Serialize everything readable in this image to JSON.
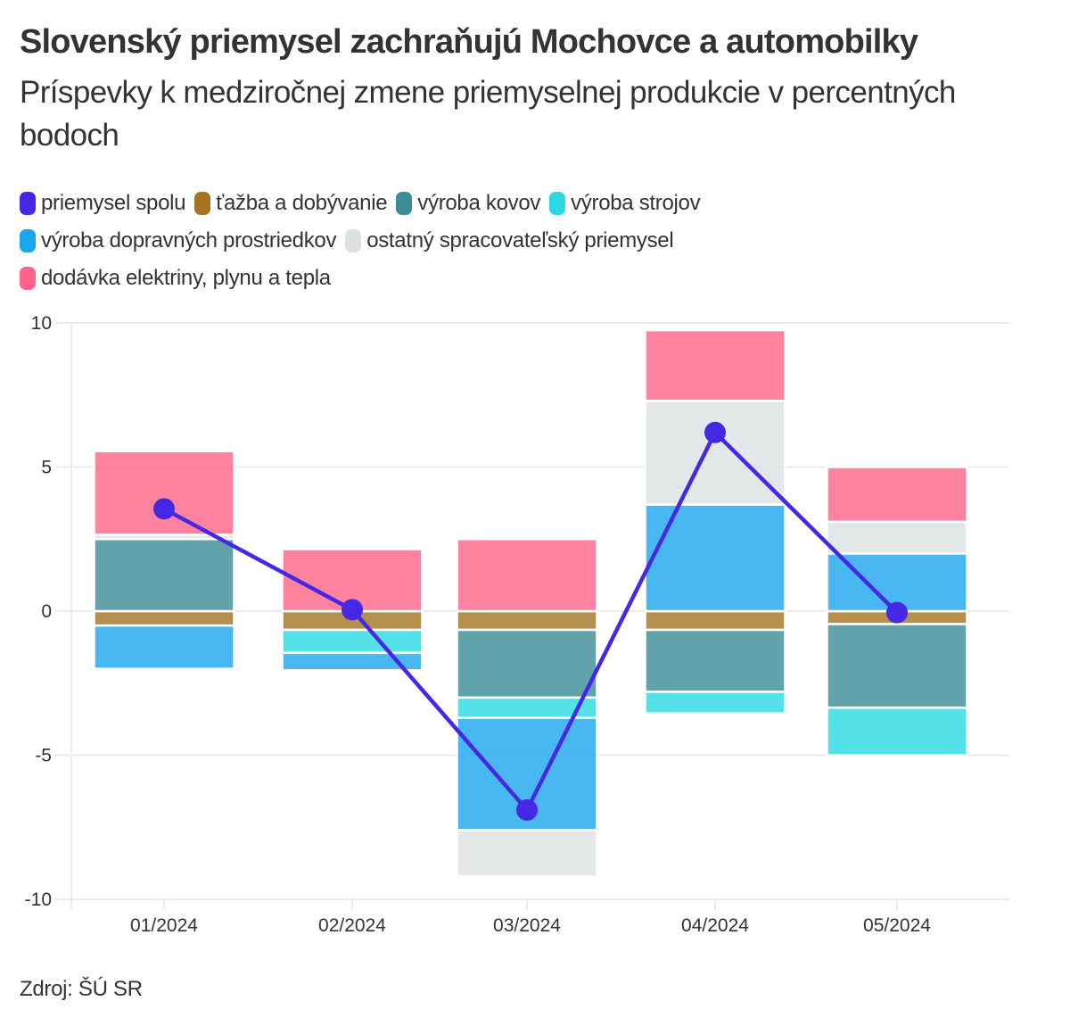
{
  "header": {
    "title": "Slovenský priemysel zachraňujú Mochovce a automobilky",
    "subtitle": "Príspevky k medziročnej zmene priemyselnej produkcie v percentných bodoch"
  },
  "footer": {
    "source": "Zdroj: ŠÚ SR"
  },
  "chart_data": {
    "type": "bar",
    "stacked": true,
    "title": "Slovenský priemysel zachraňujú Mochovce a automobilky",
    "subtitle": "Príspevky k medziročnej zmene priemyselnej produkcie v percentných bodoch",
    "xlabel": "",
    "ylabel": "",
    "categories": [
      "01/2024",
      "02/2024",
      "03/2024",
      "04/2024",
      "05/2024"
    ],
    "ylim": [
      -10,
      10
    ],
    "yticks": [
      10,
      5,
      0,
      -5,
      -10
    ],
    "grid": true,
    "legend_position": "top-left",
    "series": [
      {
        "name": "ťažba a dobývanie",
        "color": "#A27420",
        "type": "bar",
        "values": [
          -0.5,
          -0.65,
          -0.65,
          -0.65,
          -0.45
        ]
      },
      {
        "name": "výroba kovov",
        "color": "#3B8C96",
        "type": "bar",
        "values": [
          2.5,
          0.0,
          -2.35,
          -2.15,
          -2.9
        ]
      },
      {
        "name": "výroba strojov",
        "color": "#2BD9E2",
        "type": "bar",
        "values": [
          0.0,
          -0.8,
          -0.7,
          -0.75,
          -1.65
        ]
      },
      {
        "name": "výroba dopravných prostriedkov",
        "color": "#1BA6EF",
        "type": "bar",
        "values": [
          -1.5,
          -0.6,
          -3.9,
          3.7,
          2.0
        ]
      },
      {
        "name": "ostatný spracovateľský priemysel",
        "color": "#DDE1E2",
        "type": "bar",
        "values": [
          0.15,
          0.0,
          -1.6,
          3.6,
          1.1
        ]
      },
      {
        "name": "dodávka elektriny, plynu a tepla",
        "color": "#FF6486",
        "type": "bar",
        "values": [
          2.9,
          2.15,
          2.5,
          2.45,
          1.9
        ]
      },
      {
        "name": "priemysel spolu",
        "color": "#4428E4",
        "type": "line",
        "values": [
          3.55,
          0.05,
          -6.9,
          6.2,
          -0.05
        ]
      }
    ]
  },
  "legend_order": [
    "priemysel spolu",
    "ťažba a dobývanie",
    "výroba kovov",
    "výroba strojov",
    "výroba dopravných prostriedkov",
    "ostatný spracovateľský priemysel",
    "dodávka elektriny, plynu a tepla"
  ]
}
